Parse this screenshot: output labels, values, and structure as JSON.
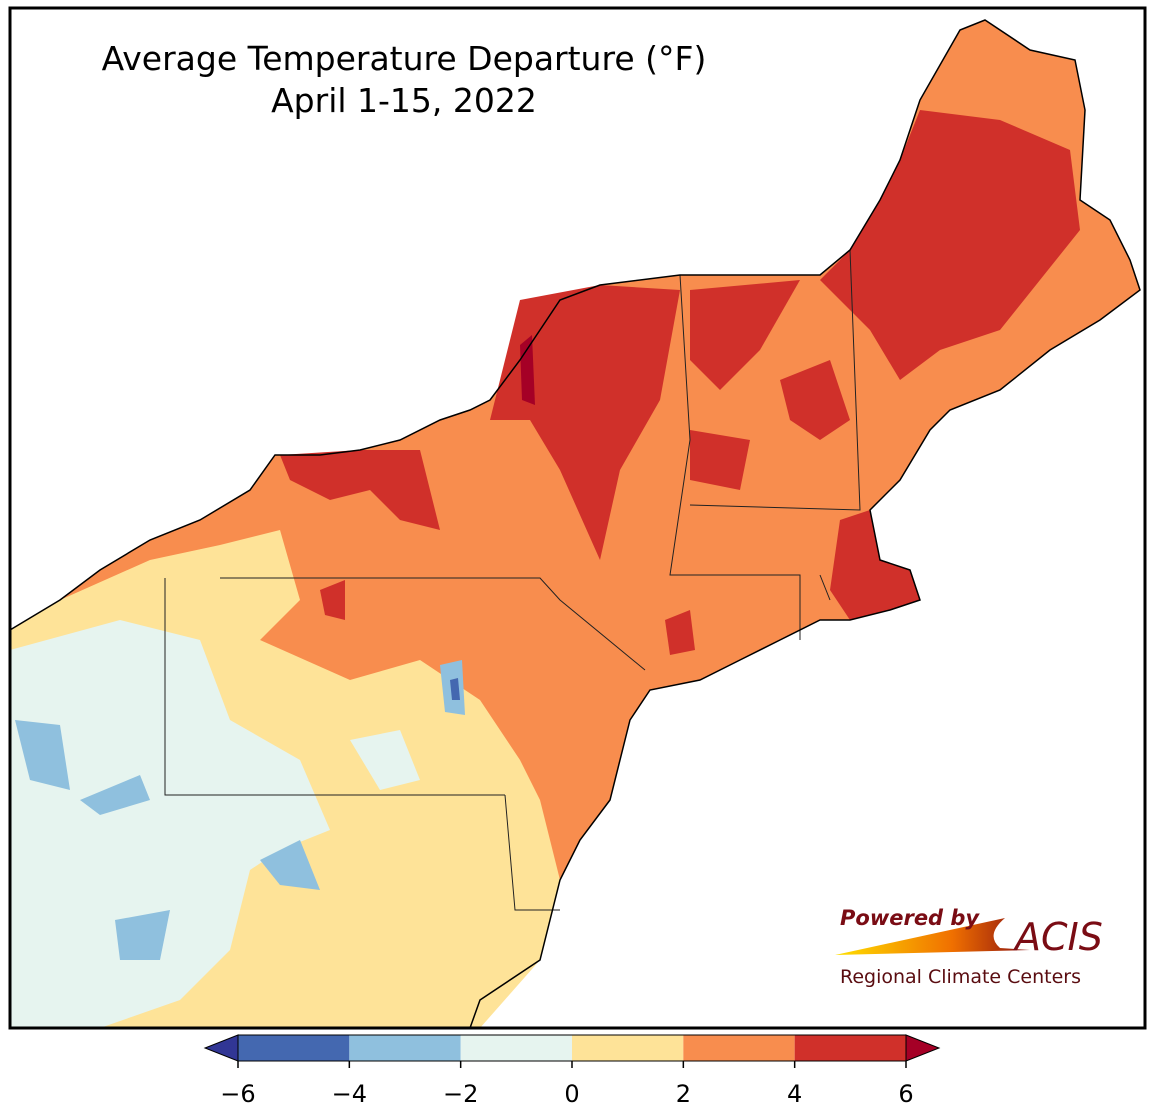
{
  "title": "Average Temperature Departure (°F)",
  "subtitle": "April 1-15, 2022",
  "colorbar": {
    "bounds": [
      -6,
      -4,
      -2,
      0,
      2,
      4,
      6
    ],
    "colors": [
      "#4468b0",
      "#8fc0de",
      "#e6f4ef",
      "#fee398",
      "#f88d4e",
      "#d0302a"
    ],
    "under_color": "#313695",
    "over_color": "#a50026",
    "ticks": [
      {
        "value": -6,
        "label": "−6"
      },
      {
        "value": -4,
        "label": "−4"
      },
      {
        "value": -2,
        "label": "−2"
      },
      0,
      2,
      4,
      6
    ]
  },
  "logo": {
    "powered_by": "Powered by",
    "name": "ACIS",
    "tagline": "Regional Climate Centers"
  }
}
